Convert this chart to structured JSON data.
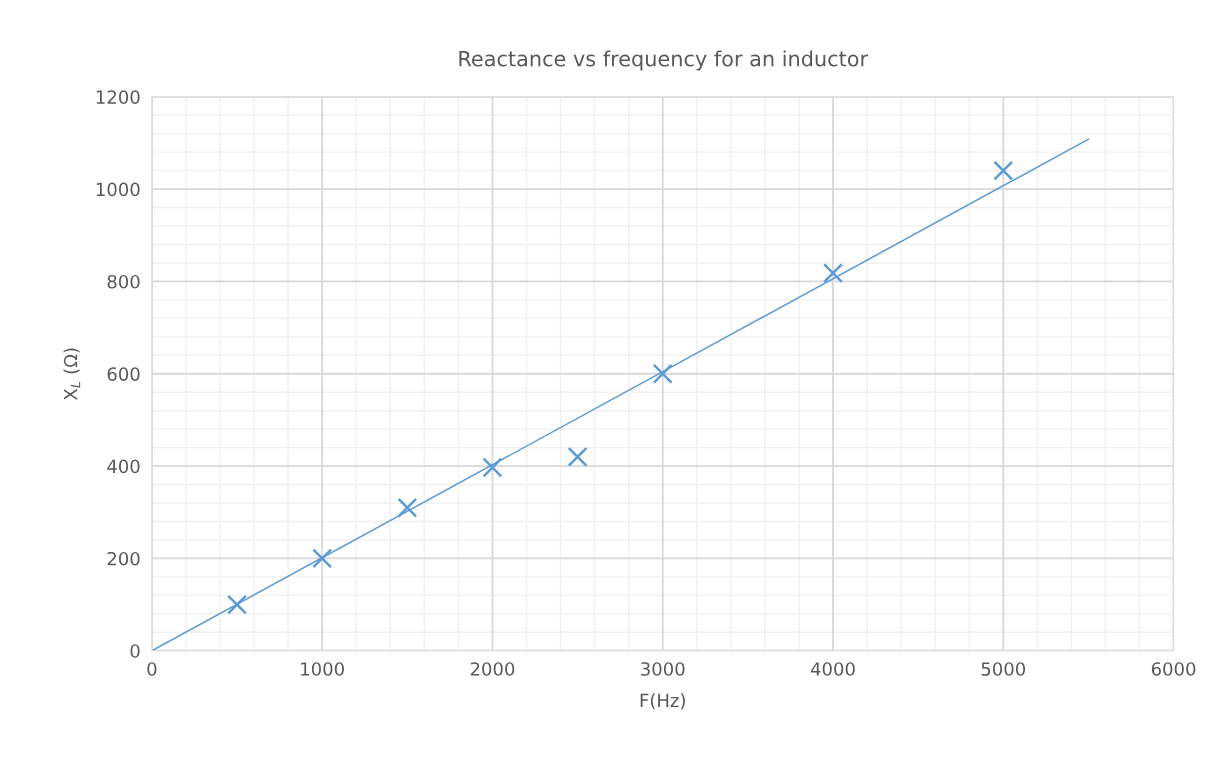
{
  "chart_data": {
    "type": "scatter",
    "title": "Reactance vs frequency for an inductor",
    "xlabel": "F(Hz)",
    "ylabel": "X$_{L}$ (Ω)",
    "series": [
      {
        "color": "#5b9bd5",
        "marker": "cross",
        "x": [
          500,
          1000,
          1500,
          2000,
          2500,
          3000,
          4000,
          5000
        ],
        "values": [
          100,
          200,
          310,
          397,
          420,
          600,
          818,
          1040
        ]
      },
      {
        "type": "line",
        "color": "#5b9bd5",
        "marker": "none",
        "x": [
          0,
          5500
        ],
        "values": [
          0,
          1108
        ]
      }
    ],
    "xlim": [
      0,
      6000
    ],
    "xticks": [
      0,
      1000,
      2000,
      3000,
      4000,
      5000,
      6000
    ],
    "ylim": [
      0,
      1200
    ],
    "yticks": [
      0,
      200,
      400,
      600,
      800,
      1000,
      1200
    ],
    "grid": true,
    "legend": false
  }
}
